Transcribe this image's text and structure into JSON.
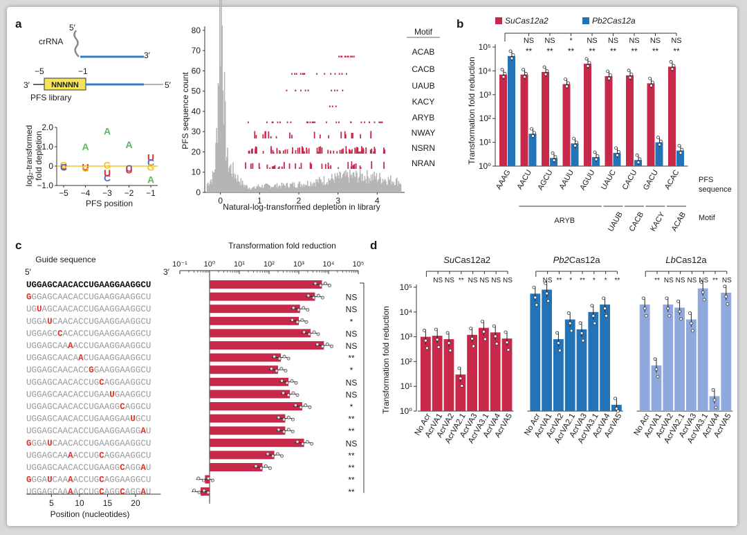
{
  "colors": {
    "su": "#c8294b",
    "pb": "#2273b8",
    "lb": "#8fa8de",
    "gray": "#b5b5b5",
    "red_letter": "#e0302b",
    "yellow": "#f4e45a",
    "blue_line": "#2e7fc5"
  },
  "panel_labels": [
    "a",
    "b",
    "c",
    "d"
  ],
  "panel_a": {
    "crRNA_label": "crRNA",
    "five_prime": "5′",
    "three_prime": "3′",
    "pfs_box": "NNNNN",
    "pos_minus5": "−5",
    "pos_minus1": "−1",
    "pfs_library": "PFS library",
    "logo": {
      "ylabel_line1": "log₂-transformed",
      "ylabel_line2": "fold depletion",
      "xlabel": "PFS position",
      "x_ticks": [
        "−5",
        "−4",
        "−3",
        "−2",
        "−1"
      ],
      "y_ticks": [
        "2.0",
        "1.0",
        "0",
        "−1.0"
      ],
      "ylim": [
        -1.0,
        2.0
      ],
      "letters": [
        {
          "pos": -5,
          "letter": "U",
          "value": 0.0,
          "color": "#e0302b"
        },
        {
          "pos": -5,
          "letter": "G",
          "value": 0.05,
          "color": "#f4c430"
        },
        {
          "pos": -5,
          "letter": "C",
          "value": -0.05,
          "color": "#5566cc"
        },
        {
          "pos": -4,
          "letter": "A",
          "value": 1.0,
          "color": "#5cb85c"
        },
        {
          "pos": -4,
          "letter": "U",
          "value": -0.05,
          "color": "#e0302b"
        },
        {
          "pos": -4,
          "letter": "G",
          "value": -0.1,
          "color": "#f4c430"
        },
        {
          "pos": -3,
          "letter": "A",
          "value": 1.8,
          "color": "#5cb85c"
        },
        {
          "pos": -3,
          "letter": "G",
          "value": 0.05,
          "color": "#f4c430"
        },
        {
          "pos": -3,
          "letter": "C",
          "value": -0.6,
          "color": "#5566cc"
        },
        {
          "pos": -3,
          "letter": "U",
          "value": -0.35,
          "color": "#e0302b"
        },
        {
          "pos": -2,
          "letter": "A",
          "value": 1.1,
          "color": "#5cb85c"
        },
        {
          "pos": -2,
          "letter": "C",
          "value": -0.1,
          "color": "#5566cc"
        },
        {
          "pos": -2,
          "letter": "U",
          "value": -0.2,
          "color": "#e0302b"
        },
        {
          "pos": -1,
          "letter": "U",
          "value": 0.45,
          "color": "#e0302b"
        },
        {
          "pos": -1,
          "letter": "C",
          "value": 0.2,
          "color": "#5566cc"
        },
        {
          "pos": -1,
          "letter": "G",
          "value": -0.05,
          "color": "#f4c430"
        },
        {
          "pos": -1,
          "letter": "A",
          "value": -0.7,
          "color": "#5cb85c"
        }
      ]
    },
    "histogram": {
      "ylabel": "PFS sequence count",
      "xlabel": "Natural-log-transformed depletion in library",
      "x_ticks": [
        "0",
        "1",
        "2",
        "3",
        "4"
      ],
      "y_ticks": [
        "0",
        "10",
        "20",
        "30",
        "40",
        "50",
        "60",
        "70",
        "80"
      ],
      "xlim": [
        -0.4,
        4.7
      ],
      "ylim": [
        0,
        82
      ],
      "motif_header": "Motif",
      "motifs": [
        "ACAB",
        "CACB",
        "UAUB",
        "KACY",
        "ARYB",
        "NWAY",
        "NSRN",
        "NRAN"
      ]
    }
  },
  "chart_data": [
    {
      "type": "bar",
      "panel": "b",
      "ylabel": "Transformation fold reduction",
      "yscale": "log",
      "ylim": [
        1,
        100000
      ],
      "y_ticks": [
        "10⁰",
        "10¹",
        "10²",
        "10³",
        "10⁴",
        "10⁵"
      ],
      "categories": [
        "AAAG",
        "AACU",
        "AGCU",
        "AAUU",
        "AGUU",
        "UAUC",
        "CACU",
        "GACU",
        "ACAC"
      ],
      "series": [
        {
          "name": "SuCas12a2",
          "values": [
            7000,
            7000,
            9000,
            2800,
            20000,
            6000,
            6500,
            3000,
            15000
          ]
        },
        {
          "name": "Pb2Cas12a",
          "values": [
            42000,
            23,
            2.2,
            9,
            2.4,
            3.6,
            1.8,
            10,
            4.5
          ]
        }
      ],
      "legend": [
        "SuCas12a2",
        "Pb2Cas12a"
      ],
      "legend_placement": "top",
      "sig_top": [
        "NS",
        "NS",
        "*",
        "NS",
        "NS",
        "NS",
        "NS",
        "NS"
      ],
      "sig_bottom": [
        "**",
        "**",
        "**",
        "**",
        "**",
        "**",
        "**",
        "**"
      ],
      "pfs_label": "PFS sequence",
      "motif_label": "Motif",
      "motif_groups": [
        "ARYB",
        "UAUB",
        "CACB",
        "KACY",
        "ACAB"
      ]
    },
    {
      "type": "bar",
      "panel": "c",
      "orientation": "horizontal",
      "title": "Transformation fold reduction",
      "xscale": "log",
      "xlim": [
        0.1,
        100000
      ],
      "x_ticks": [
        "10⁻¹",
        "10⁰",
        "10¹",
        "10²",
        "10³",
        "10⁴",
        "10⁵"
      ],
      "guide_header": "Guide sequence",
      "five_prime": "5′",
      "three_prime": "3′",
      "position_label": "Position (nucleotides)",
      "position_ticks": [
        "5",
        "10",
        "15",
        "20"
      ],
      "rows": [
        {
          "seq": "UGGAGCAACACCUGAAGGAAGGCU",
          "mut": [],
          "value": 6000,
          "sig": ""
        },
        {
          "seq": "GGGAGCAACACCUGAAGGAAGGCU",
          "mut": [
            0
          ],
          "value": 3500,
          "sig": "NS"
        },
        {
          "seq": "UGUAGCAACACCUGAAGGAAGGCU",
          "mut": [
            2
          ],
          "value": 1100,
          "sig": "NS"
        },
        {
          "seq": "UGGAUCAACACCUGAAGGAAGGCU",
          "mut": [
            4
          ],
          "value": 1000,
          "sig": "*"
        },
        {
          "seq": "UGGAGCCACACCUGAAGGAAGGCU",
          "mut": [
            6
          ],
          "value": 2500,
          "sig": "NS"
        },
        {
          "seq": "UGGAGCAAAACCUGAAGGAAGGCU",
          "mut": [
            8
          ],
          "value": 7000,
          "sig": "NS"
        },
        {
          "seq": "UGGAGCAACAACUGAAGGAAGGCU",
          "mut": [
            10
          ],
          "value": 250,
          "sig": "**"
        },
        {
          "seq": "UGGAGCAACACCGGAAGGAAGGCU",
          "mut": [
            12
          ],
          "value": 200,
          "sig": "*"
        },
        {
          "seq": "UGGAGCAACACCUGCAGGAAGGCU",
          "mut": [
            14
          ],
          "value": 450,
          "sig": "NS"
        },
        {
          "seq": "UGGAGCAACACCUGAAUGAAGGCU",
          "mut": [
            16
          ],
          "value": 500,
          "sig": "NS"
        },
        {
          "seq": "UGGAGCAACACCUGAAGGCAGGCU",
          "mut": [
            18
          ],
          "value": 1300,
          "sig": "*"
        },
        {
          "seq": "UGGAGCAACACCUGAAGGAAUGCU",
          "mut": [
            20
          ],
          "value": 350,
          "sig": "**"
        },
        {
          "seq": "UGGAGCAACACCUGAAGGAAGGAU",
          "mut": [
            22
          ],
          "value": 350,
          "sig": "**"
        },
        {
          "seq": "GGGAUCAACACCUGAAGGAAGGCU",
          "mut": [
            0,
            4
          ],
          "value": 1500,
          "sig": "NS"
        },
        {
          "seq": "UGGAGCAAAACCUGCAGGAAGGCU",
          "mut": [
            8,
            14
          ],
          "value": 150,
          "sig": "**"
        },
        {
          "seq": "UGGAGCAACACCUGAAGGCAGGAU",
          "mut": [
            18,
            22
          ],
          "value": 60,
          "sig": "**"
        },
        {
          "seq": "GGGAUCAAAACCUGCAGGAAGGCU",
          "mut": [
            0,
            4,
            8,
            14
          ],
          "value": 0.7,
          "sig": "**"
        },
        {
          "seq": "UGGAGCAAAACCUGCAGGCAGGAU",
          "mut": [
            8,
            14,
            18,
            22
          ],
          "value": 0.5,
          "sig": "**"
        }
      ]
    },
    {
      "type": "bar",
      "panel": "d",
      "ylabel": "Transformation fold reduction",
      "yscale": "log",
      "ylim": [
        1,
        100000
      ],
      "y_ticks": [
        "10⁰",
        "10¹",
        "10²",
        "10³",
        "10⁴",
        "10⁵"
      ],
      "categories": [
        "No Acr",
        "AcrVA1",
        "AcrVA2",
        "AcrVA2.1",
        "AcrVA3",
        "AcrVA3.1",
        "AcrVA4",
        "AcrVA5"
      ],
      "groups": [
        {
          "name": "SuCas12a2",
          "values": [
            1000,
            1100,
            800,
            30,
            1200,
            2300,
            1500,
            850
          ],
          "sig": [
            "NS",
            "NS",
            "**",
            "NS",
            "NS",
            "NS",
            "NS"
          ]
        },
        {
          "name": "Pb2Cas12a",
          "values": [
            55000,
            80000,
            800,
            5000,
            2000,
            10000,
            20000,
            1.8
          ],
          "sig": [
            "NS",
            "**",
            "*",
            "**",
            "*",
            "*",
            "**"
          ]
        },
        {
          "name": "LbCas12a",
          "values": [
            20000,
            70,
            20000,
            15000,
            5000,
            90000,
            4,
            60000
          ],
          "sig": [
            "**",
            "NS",
            "NS",
            "NS",
            "NS",
            "**",
            "NS"
          ]
        }
      ]
    }
  ]
}
